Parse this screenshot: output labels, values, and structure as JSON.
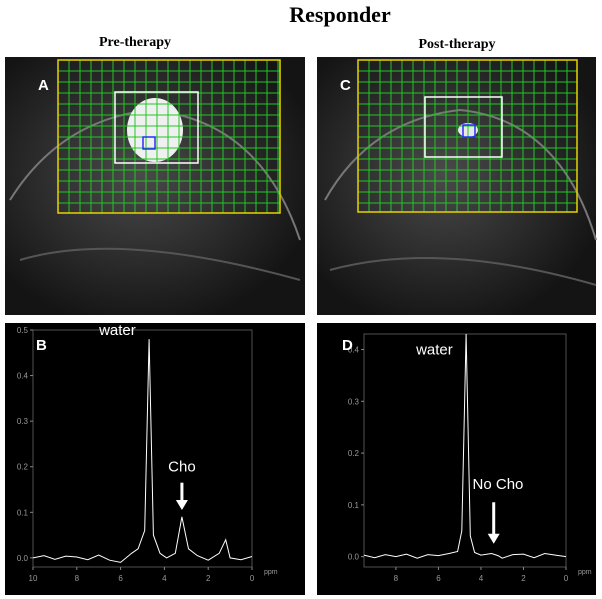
{
  "header": {
    "title": "Responder",
    "left": "Pre-therapy",
    "right": "Post-therapy"
  },
  "images": [
    {
      "label": "A"
    },
    {
      "label": "C"
    }
  ],
  "chart_data": [
    {
      "type": "line",
      "label": "B",
      "xlabel": "ppm",
      "color": "#ffffff",
      "annotations": [
        "water",
        "Cho"
      ],
      "x": [
        10,
        9.5,
        9,
        8.5,
        8,
        7.5,
        7,
        6.5,
        6,
        5.5,
        5.2,
        4.9,
        4.7,
        4.5,
        4.2,
        3.9,
        3.5,
        3.2,
        2.9,
        2.5,
        2,
        1.5,
        1.2,
        1,
        0.5,
        0
      ],
      "values": [
        0,
        0.005,
        -0.003,
        0.004,
        0.002,
        -0.004,
        0.006,
        -0.005,
        -0.01,
        0.01,
        0.02,
        0.06,
        0.48,
        0.05,
        0.01,
        0.0,
        0.01,
        0.09,
        0.02,
        0.005,
        -0.005,
        0.01,
        0.04,
        0.0,
        -0.004,
        0.003
      ],
      "xlim": [
        10,
        0
      ],
      "xticks": [
        10,
        8,
        6,
        4,
        2,
        0
      ],
      "ylim": [
        -0.02,
        0.5
      ],
      "yticks": [
        {
          "value": 0,
          "label": "0.0"
        },
        0.1,
        0.2,
        0.3,
        0.4,
        0.5
      ]
    },
    {
      "type": "line",
      "label": "D",
      "xlabel": "ppm",
      "color": "#ffffff",
      "annotations": [
        "water",
        "No Cho"
      ],
      "x": [
        9.5,
        9,
        8.5,
        8,
        7.5,
        7,
        6.5,
        6,
        5.5,
        5.1,
        4.9,
        4.7,
        4.5,
        4.3,
        4,
        3.5,
        3.2,
        3,
        2.5,
        2,
        1.5,
        1,
        0.5,
        0
      ],
      "values": [
        0.003,
        -0.002,
        0.004,
        0.0,
        0.005,
        -0.003,
        0.004,
        0.002,
        0.006,
        0.01,
        0.05,
        0.43,
        0.04,
        0.008,
        0.003,
        0.006,
        0.002,
        -0.003,
        0.004,
        0.005,
        -0.002,
        0.006,
        0.003,
        0.0
      ],
      "xlim": [
        9.5,
        0
      ],
      "xticks": [
        8,
        6,
        4,
        2,
        0
      ],
      "ylim": [
        -0.02,
        0.43
      ],
      "yticks": [
        {
          "value": 0,
          "label": "0.0"
        },
        0.1,
        0.2,
        0.3,
        0.4
      ]
    }
  ]
}
